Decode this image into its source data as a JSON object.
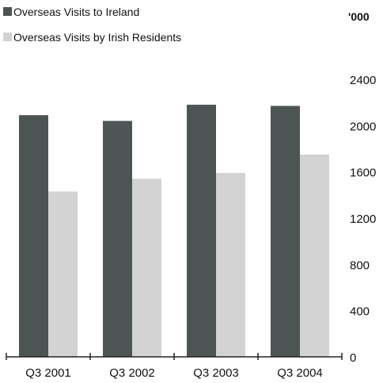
{
  "chart_data": {
    "type": "bar",
    "unit_label": "'000",
    "categories": [
      "Q3 2001",
      "Q3 2002",
      "Q3 2003",
      "Q3 2004"
    ],
    "series": [
      {
        "name": "Overseas Visits to Ireland",
        "color": "#4d5454",
        "values": [
          2090,
          2040,
          2180,
          2170
        ]
      },
      {
        "name": "Overseas Visits by Irish Residents",
        "color": "#d3d3d3",
        "values": [
          1430,
          1540,
          1590,
          1750
        ]
      }
    ],
    "ylim": [
      0,
      2400
    ],
    "yticks": [
      0,
      400,
      800,
      1200,
      1600,
      2000,
      2400
    ],
    "y_axis_side": "right",
    "legend_position": "top-left",
    "grid": false
  }
}
